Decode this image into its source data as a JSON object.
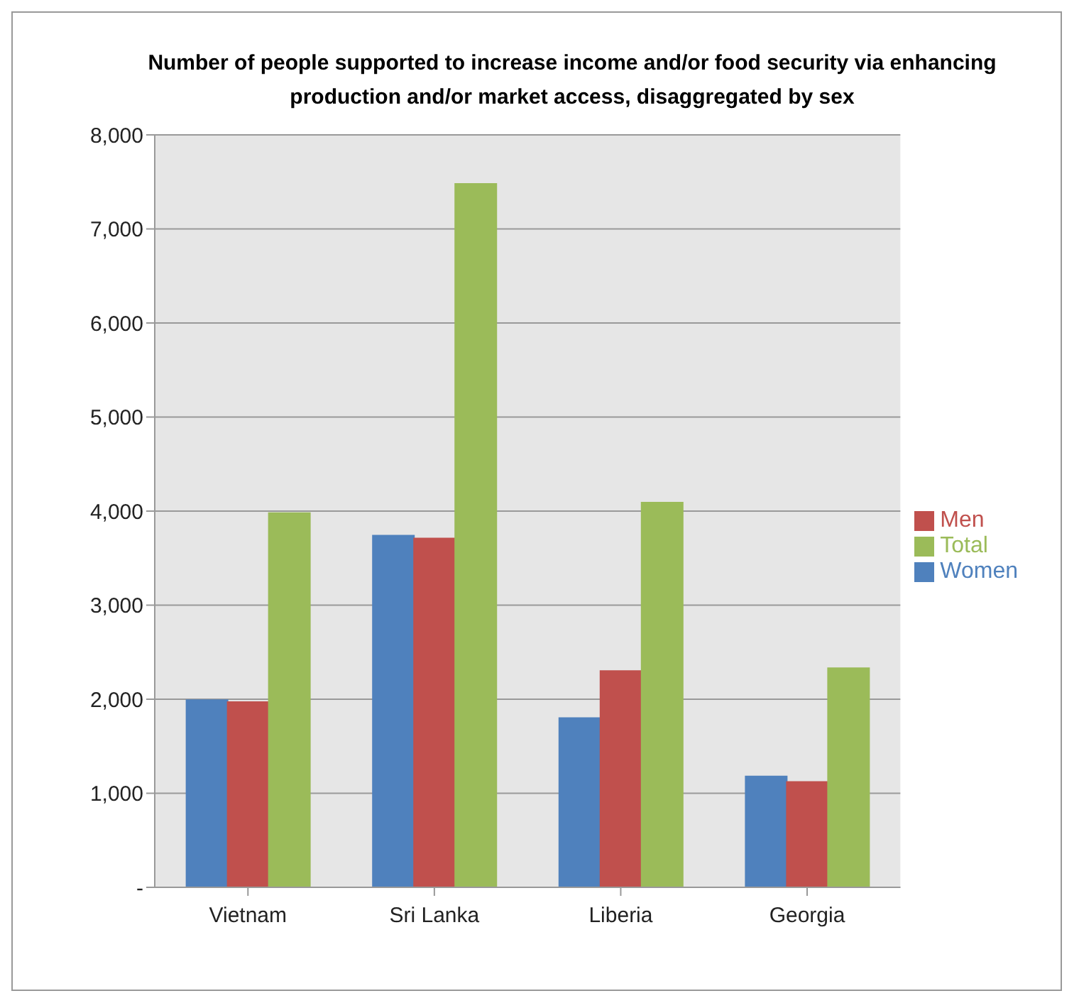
{
  "chart_data": {
    "type": "bar",
    "title": "Number of people supported to increase income and/or food security via enhancing production and/or market access, disaggregated by sex",
    "categories": [
      "Vietnam",
      "Sri Lanka",
      "Liberia",
      "Georgia"
    ],
    "series": [
      {
        "name": "Women",
        "color": "#4f81bd",
        "values": [
          1990,
          3740,
          1800,
          1180
        ]
      },
      {
        "name": "Men",
        "color": "#c0504d",
        "values": [
          1970,
          3710,
          2300,
          1120
        ]
      },
      {
        "name": "Total",
        "color": "#9bbb59",
        "values": [
          3980,
          7480,
          4090,
          2330
        ]
      }
    ],
    "ylim": [
      0,
      8000
    ],
    "yticks": [
      {
        "value": 0,
        "label": "-"
      },
      {
        "value": 1000,
        "label": "1,000"
      },
      {
        "value": 2000,
        "label": "2,000"
      },
      {
        "value": 3000,
        "label": "3,000"
      },
      {
        "value": 4000,
        "label": "4,000"
      },
      {
        "value": 5000,
        "label": "5,000"
      },
      {
        "value": 6000,
        "label": "6,000"
      },
      {
        "value": 7000,
        "label": "7,000"
      },
      {
        "value": 8000,
        "label": "8,000"
      }
    ],
    "grid": "y",
    "legend": "right"
  }
}
